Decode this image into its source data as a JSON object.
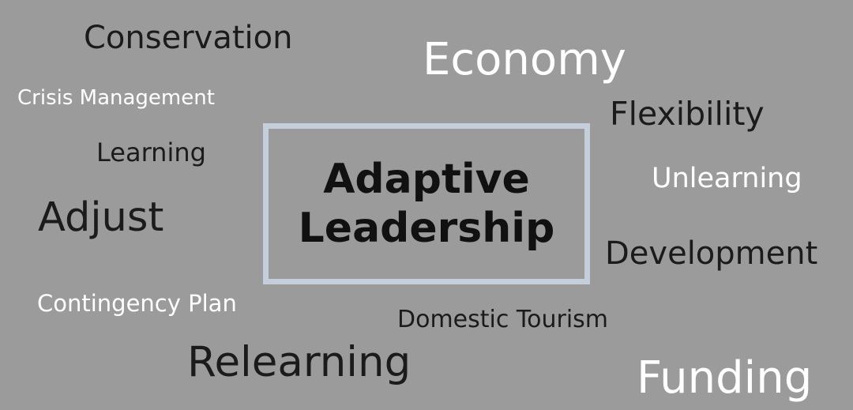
{
  "center": {
    "line1": "Adaptive",
    "line2": "Leadership"
  },
  "words": {
    "conservation": "Conservation",
    "economy": "Economy",
    "crisis_management": "Crisis Management",
    "flexibility": "Flexibility",
    "learning": "Learning",
    "unlearning": "Unlearning",
    "adjust": "Adjust",
    "development": "Development",
    "contingency_plan": "Contingency Plan",
    "domestic_tourism": "Domestic Tourism",
    "relearning": "Relearning",
    "funding": "Funding"
  },
  "colors": {
    "background": "#9b9b9b",
    "dark_text": "#1b1b1b",
    "light_text": "#ffffff",
    "box_border": "#c5cedb"
  }
}
